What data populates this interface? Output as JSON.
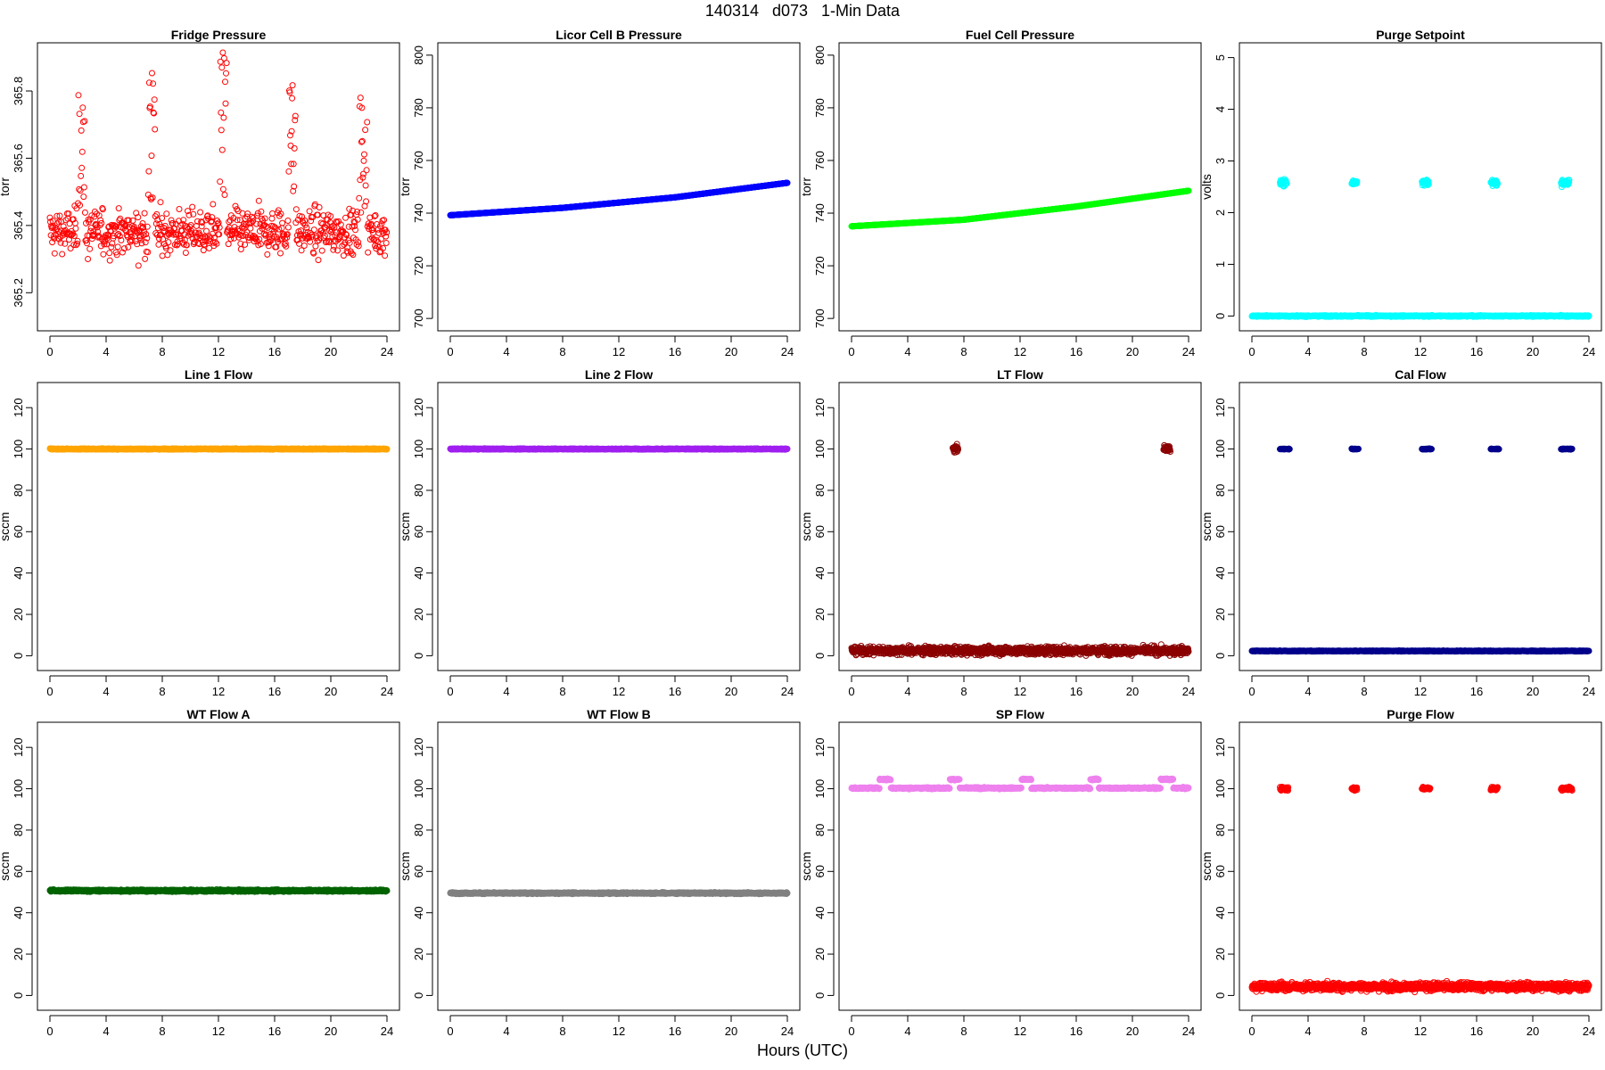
{
  "figure": {
    "title": "140314   d073   1-Min Data",
    "xlabel": "Hours (UTC)"
  },
  "chart_data": [
    {
      "type": "scatter",
      "title": "Fridge Pressure",
      "ylabel": "torr",
      "color": "#ff0000",
      "marker": "open-circle",
      "xlim": [
        0,
        24
      ],
      "xticks": [
        0,
        4,
        8,
        12,
        16,
        20,
        24
      ],
      "ylim": [
        365.1,
        365.93
      ],
      "yticks": [
        "365.2",
        "365.4",
        "365.6",
        "365.8"
      ],
      "pattern": {
        "kind": "noisy",
        "base": 365.38,
        "spread": 0.1,
        "min": 365.11,
        "max": 365.92,
        "spikes": [
          {
            "x": [
              2.0,
              2.5
            ],
            "ymax": 365.82
          },
          {
            "x": [
              7.0,
              7.5
            ],
            "ymax": 365.87
          },
          {
            "x": [
              12.1,
              12.6
            ],
            "ymax": 365.92
          },
          {
            "x": [
              17.0,
              17.5
            ],
            "ymax": 365.84
          },
          {
            "x": [
              22.0,
              22.6
            ],
            "ymax": 365.82
          }
        ]
      }
    },
    {
      "type": "scatter",
      "title": "Licor Cell B Pressure",
      "ylabel": "torr",
      "color": "#0000ff",
      "marker": "open-circle",
      "xlim": [
        0,
        24
      ],
      "xticks": [
        0,
        4,
        8,
        12,
        16,
        20,
        24
      ],
      "ylim": [
        697,
        803
      ],
      "yticks": [
        "700",
        "720",
        "740",
        "760",
        "780",
        "800"
      ],
      "pattern": {
        "kind": "line",
        "points": [
          [
            0,
            739.2
          ],
          [
            8,
            742.0
          ],
          [
            16,
            746.0
          ],
          [
            24,
            751.5
          ]
        ]
      }
    },
    {
      "type": "scatter",
      "title": "Fuel Cell Pressure",
      "ylabel": "torr",
      "color": "#00ff00",
      "marker": "open-circle",
      "xlim": [
        0,
        24
      ],
      "xticks": [
        0,
        4,
        8,
        12,
        16,
        20,
        24
      ],
      "ylim": [
        697,
        803
      ],
      "yticks": [
        "700",
        "720",
        "740",
        "760",
        "780",
        "800"
      ],
      "pattern": {
        "kind": "line",
        "points": [
          [
            0,
            735.0
          ],
          [
            8,
            737.5
          ],
          [
            16,
            742.5
          ],
          [
            24,
            748.5
          ]
        ]
      }
    },
    {
      "type": "scatter",
      "title": "Purge Setpoint",
      "ylabel": "volts",
      "color": "#00ffff",
      "marker": "open-circle",
      "xlim": [
        0,
        24
      ],
      "xticks": [
        0,
        4,
        8,
        12,
        16,
        20,
        24
      ],
      "ylim": [
        -0.2,
        5.2
      ],
      "yticks": [
        "0",
        "1",
        "2",
        "3",
        "4",
        "5"
      ],
      "pattern": {
        "kind": "baseline-clusters",
        "base": 0,
        "jitter": 0.01,
        "level": 2.58,
        "cjitter": 0.05,
        "clusters": [
          [
            2.0,
            2.5
          ],
          [
            7.1,
            7.5
          ],
          [
            12.1,
            12.6
          ],
          [
            17.0,
            17.5
          ],
          [
            22.0,
            22.6
          ]
        ]
      }
    },
    {
      "type": "scatter",
      "title": "Line 1 Flow",
      "ylabel": "sccm",
      "color": "#ffa500",
      "marker": "open-circle",
      "xlim": [
        0,
        24
      ],
      "xticks": [
        0,
        4,
        8,
        12,
        16,
        20,
        24
      ],
      "ylim": [
        -5,
        130
      ],
      "yticks": [
        "0",
        "20",
        "40",
        "60",
        "80",
        "100",
        "120"
      ],
      "pattern": {
        "kind": "constant",
        "value": 100,
        "jitter": 0.2
      }
    },
    {
      "type": "scatter",
      "title": "Line 2 Flow",
      "ylabel": "sccm",
      "color": "#a020f0",
      "marker": "open-circle",
      "xlim": [
        0,
        24
      ],
      "xticks": [
        0,
        4,
        8,
        12,
        16,
        20,
        24
      ],
      "ylim": [
        -5,
        130
      ],
      "yticks": [
        "0",
        "20",
        "40",
        "60",
        "80",
        "100",
        "120"
      ],
      "pattern": {
        "kind": "constant",
        "value": 100,
        "jitter": 0.2
      }
    },
    {
      "type": "scatter",
      "title": "LT Flow",
      "ylabel": "sccm",
      "color": "#8b0000",
      "marker": "open-circle",
      "xlim": [
        0,
        24
      ],
      "xticks": [
        0,
        4,
        8,
        12,
        16,
        20,
        24
      ],
      "ylim": [
        -5,
        130
      ],
      "yticks": [
        "0",
        "20",
        "40",
        "60",
        "80",
        "100",
        "120"
      ],
      "pattern": {
        "kind": "baseline-clusters",
        "base": 2.5,
        "jitter": 1.6,
        "level": 100,
        "cjitter": 1.5,
        "clusters": [
          [
            7.2,
            7.6
          ],
          [
            22.2,
            22.7
          ]
        ]
      }
    },
    {
      "type": "scatter",
      "title": "Cal Flow",
      "ylabel": "sccm",
      "color": "#00008b",
      "marker": "open-circle",
      "xlim": [
        0,
        24
      ],
      "xticks": [
        0,
        4,
        8,
        12,
        16,
        20,
        24
      ],
      "ylim": [
        -5,
        130
      ],
      "yticks": [
        "0",
        "20",
        "40",
        "60",
        "80",
        "100",
        "120"
      ],
      "pattern": {
        "kind": "baseline-clusters",
        "base": 2.3,
        "jitter": 0.15,
        "level": 100,
        "cjitter": 0.15,
        "clusters": [
          [
            2.0,
            2.7
          ],
          [
            7.1,
            7.6
          ],
          [
            12.1,
            12.8
          ],
          [
            17.0,
            17.6
          ],
          [
            22.0,
            22.8
          ]
        ]
      }
    },
    {
      "type": "scatter",
      "title": "WT Flow A",
      "ylabel": "sccm",
      "color": "#006400",
      "marker": "open-circle",
      "xlim": [
        0,
        24
      ],
      "xticks": [
        0,
        4,
        8,
        12,
        16,
        20,
        24
      ],
      "ylim": [
        -5,
        130
      ],
      "yticks": [
        "0",
        "20",
        "40",
        "60",
        "80",
        "100",
        "120"
      ],
      "pattern": {
        "kind": "constant",
        "value": 50.7,
        "jitter": 0.4
      }
    },
    {
      "type": "scatter",
      "title": "WT Flow B",
      "ylabel": "sccm",
      "color": "#808080",
      "marker": "open-circle",
      "xlim": [
        0,
        24
      ],
      "xticks": [
        0,
        4,
        8,
        12,
        16,
        20,
        24
      ],
      "ylim": [
        -5,
        130
      ],
      "yticks": [
        "0",
        "20",
        "40",
        "60",
        "80",
        "100",
        "120"
      ],
      "pattern": {
        "kind": "constant",
        "value": 49.5,
        "jitter": 0.3
      }
    },
    {
      "type": "scatter",
      "title": "SP Flow",
      "ylabel": "sccm",
      "color": "#ee82ee",
      "marker": "open-circle",
      "xlim": [
        0,
        24
      ],
      "xticks": [
        0,
        4,
        8,
        12,
        16,
        20,
        24
      ],
      "ylim": [
        -5,
        130
      ],
      "yticks": [
        "0",
        "20",
        "40",
        "60",
        "80",
        "100",
        "120"
      ],
      "pattern": {
        "kind": "baseline-clusters",
        "base": 100.3,
        "jitter": 0.3,
        "level": 104.5,
        "cjitter": 0.3,
        "replace": true,
        "clusters": [
          [
            2.0,
            2.8
          ],
          [
            7.0,
            7.7
          ],
          [
            12.1,
            12.8
          ],
          [
            17.0,
            17.6
          ],
          [
            22.0,
            22.9
          ]
        ]
      }
    },
    {
      "type": "scatter",
      "title": "Purge Flow",
      "ylabel": "sccm",
      "color": "#ff0000",
      "marker": "open-circle",
      "xlim": [
        0,
        24
      ],
      "xticks": [
        0,
        4,
        8,
        12,
        16,
        20,
        24
      ],
      "ylim": [
        -5,
        130
      ],
      "yticks": [
        "0",
        "20",
        "40",
        "60",
        "80",
        "100",
        "120"
      ],
      "pattern": {
        "kind": "baseline-clusters",
        "base": 4.3,
        "jitter": 1.6,
        "level": 100,
        "cjitter": 0.7,
        "clusters": [
          [
            2.0,
            2.6
          ],
          [
            7.1,
            7.5
          ],
          [
            12.1,
            12.7
          ],
          [
            17.0,
            17.5
          ],
          [
            22.0,
            22.8
          ]
        ]
      }
    }
  ]
}
